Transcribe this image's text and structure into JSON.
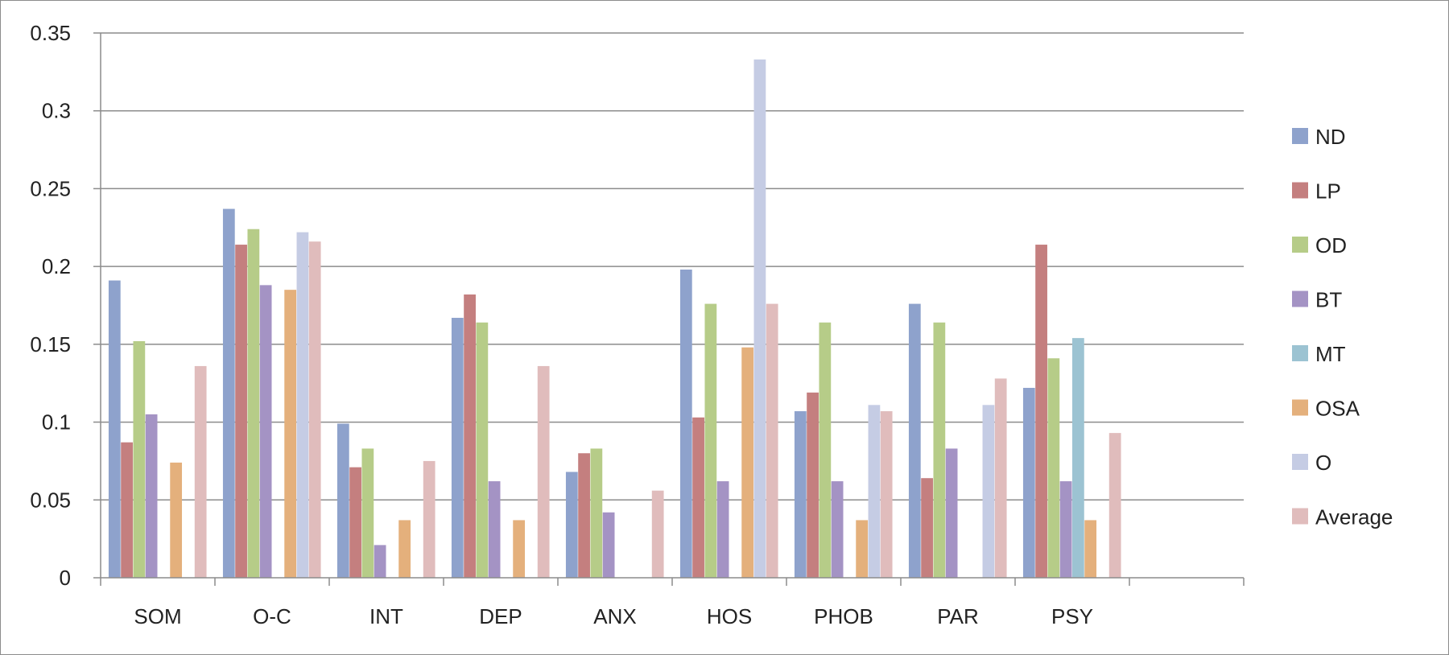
{
  "chart_data": {
    "type": "bar",
    "categories": [
      "SOM",
      "O-C",
      "INT",
      "DEP",
      "ANX",
      "HOS",
      "PHOB",
      "PAR",
      "PSY",
      ""
    ],
    "series": [
      {
        "name": "ND",
        "color": "#8ea2cc",
        "values": [
          0.191,
          0.237,
          0.099,
          0.167,
          0.068,
          0.198,
          0.107,
          0.176,
          0.122,
          null
        ]
      },
      {
        "name": "LP",
        "color": "#c47f7f",
        "values": [
          0.087,
          0.214,
          0.071,
          0.182,
          0.08,
          0.103,
          0.119,
          0.064,
          0.214,
          null
        ]
      },
      {
        "name": "OD",
        "color": "#b6cc88",
        "values": [
          0.152,
          0.224,
          0.083,
          0.164,
          0.083,
          0.176,
          0.164,
          0.164,
          0.141,
          null
        ]
      },
      {
        "name": "BT",
        "color": "#a493c4",
        "values": [
          0.105,
          0.188,
          0.021,
          0.062,
          0.042,
          0.062,
          0.062,
          0.083,
          0.062,
          null
        ]
      },
      {
        "name": "MT",
        "color": "#9cc3d2",
        "values": [
          0,
          0,
          0,
          0,
          0,
          0,
          0,
          0,
          0.154,
          null
        ]
      },
      {
        "name": "OSA",
        "color": "#e4b07c",
        "values": [
          0.074,
          0.185,
          0.037,
          0.037,
          0,
          0.148,
          0.037,
          0,
          0.037,
          null
        ]
      },
      {
        "name": "O",
        "color": "#c5cce4",
        "values": [
          0,
          0.222,
          0,
          0,
          0,
          0.333,
          0.111,
          0.111,
          0,
          null
        ]
      },
      {
        "name": "Average",
        "color": "#e0bcbc",
        "values": [
          0.136,
          0.216,
          0.075,
          0.136,
          0.056,
          0.176,
          0.107,
          0.128,
          0.093,
          null
        ]
      }
    ],
    "yticks": [
      "0",
      "0.05",
      "0.1",
      "0.15",
      "0.2",
      "0.25",
      "0.3",
      "0.35"
    ],
    "ylim": [
      0,
      0.35
    ],
    "title": "",
    "xlabel": "",
    "ylabel": "",
    "grid": true,
    "legend_position": "right"
  }
}
